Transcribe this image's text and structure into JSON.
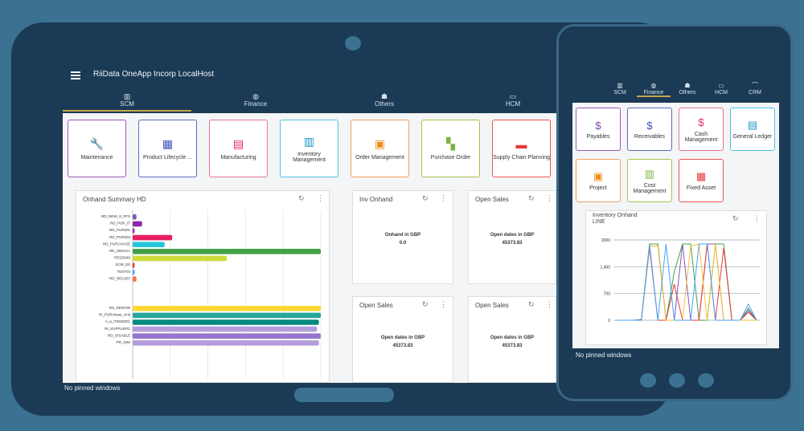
{
  "app": {
    "title": "RiiData OneApp Incorp LocalHost"
  },
  "tabs": [
    {
      "label": "SCM",
      "icon": "building-icon",
      "active": true
    },
    {
      "label": "Finance",
      "icon": "globe-icon",
      "active": false
    },
    {
      "label": "Others",
      "icon": "people-icon",
      "active": false
    },
    {
      "label": "HCM",
      "icon": "id-card-icon",
      "active": false
    }
  ],
  "tiles": [
    {
      "label": "Maintenance",
      "border": "#9b59b6",
      "icon_color": "#7e3fb0",
      "glyph": "🔧",
      "icon": "wrench-icon"
    },
    {
      "label": "Product Lifecycle ...",
      "border": "#5c6bc0",
      "icon_color": "#3f51b5",
      "glyph": "▦",
      "icon": "cube-icon"
    },
    {
      "label": "Manufacturing",
      "border": "#e57399",
      "icon_color": "#e91e63",
      "glyph": "▤",
      "icon": "factory-icon"
    },
    {
      "label": "Inventory Management",
      "border": "#4fc3e6",
      "icon_color": "#2196c8",
      "glyph": "▥",
      "icon": "boxes-icon"
    },
    {
      "label": "Order Management",
      "border": "#f0a060",
      "icon_color": "#ef8c1a",
      "glyph": "▣",
      "icon": "briefcase-icon"
    },
    {
      "label": "Purchase Order",
      "border": "#a5c34a",
      "icon_color": "#7cb342",
      "glyph": "▚",
      "icon": "grid-icon"
    },
    {
      "label": "Supply Chain Planning",
      "border": "#ef5350",
      "icon_color": "#e53935",
      "glyph": "▬",
      "icon": "stack-icon"
    }
  ],
  "panels": {
    "onhand": {
      "title": "Onhand Summary HD"
    },
    "inv_onhand": {
      "title": "Inv Onhand",
      "line1": "Onhand in GBP",
      "line2": "0.0"
    },
    "open_sales_1": {
      "title": "Open Sales",
      "line1": "Open dates in GBP",
      "line2": "45373.83"
    },
    "open_sales_2": {
      "title": "Open Sales",
      "line1": "Open dates in GBP",
      "line2": "45373.83"
    },
    "open_sales_3": {
      "title": "Open Sales",
      "line1": "Open dates in GBP",
      "line2": "45373.83"
    }
  },
  "chart_data": [
    {
      "type": "bar",
      "title": "Onhand Summary HD",
      "orientation": "horizontal",
      "categories": [
        "RD_NEW_S_FFS",
        "RD_PUR_IT",
        "RD_PUR001",
        "RD_PUR004",
        "RD_PURCHASE",
        "RD_SIMASA",
        "REG5048",
        "SCM_SS",
        "TEST03",
        "RD_REC007",
        "RD_RENT05",
        "RI_PURchase_Unit",
        "ri_a_ITEM2001",
        "RI_SUPPLIER1",
        "RD_DISABLE",
        "PR_SWI"
      ],
      "values": [
        2,
        5,
        1,
        21,
        17,
        100,
        50,
        1,
        1,
        2,
        100,
        100,
        99,
        98,
        100,
        99
      ],
      "colors": [
        "#7e57c2",
        "#8e24aa",
        "#9c27b0",
        "#e91e63",
        "#26c6da",
        "#43a047",
        "#cddc39",
        "#e53935",
        "#42a5f5",
        "#ff7043",
        "#fdd835",
        "#26a69a",
        "#00897b",
        "#b39ddb",
        "#9575cd",
        "#b39ddb"
      ],
      "xlim": [
        0,
        100
      ],
      "grid": true
    },
    {
      "type": "line",
      "title": "Inventory Onhand LINE",
      "yticks": [
        "2000",
        "1,400",
        "700",
        "0"
      ],
      "ylim": [
        0,
        2000
      ],
      "series": [
        {
          "color": "#7e57c2",
          "values": [
            0,
            0,
            0,
            20,
            1900,
            1900,
            0,
            0,
            1900,
            0,
            0,
            1900,
            1900,
            0,
            0,
            0,
            250,
            0
          ]
        },
        {
          "color": "#43a047",
          "values": [
            0,
            0,
            0,
            0,
            1900,
            1900,
            0,
            1200,
            1900,
            1900,
            0,
            0,
            1900,
            1900,
            0,
            0,
            300,
            0
          ]
        },
        {
          "color": "#e53935",
          "values": [
            0,
            0,
            0,
            0,
            1800,
            0,
            0,
            900,
            0,
            0,
            0,
            1900,
            0,
            1800,
            0,
            0,
            200,
            0
          ]
        },
        {
          "color": "#fbc02d",
          "values": [
            0,
            0,
            0,
            0,
            1850,
            1850,
            0,
            0,
            0,
            1850,
            1900,
            0,
            1900,
            0,
            0,
            0,
            0,
            0
          ]
        },
        {
          "color": "#42a5f5",
          "values": [
            0,
            0,
            0,
            0,
            1900,
            0,
            1900,
            0,
            0,
            0,
            1900,
            1900,
            0,
            0,
            0,
            0,
            400,
            0
          ]
        }
      ]
    }
  ],
  "footer": {
    "text": "No pinned windows"
  },
  "phone": {
    "tabs": [
      {
        "label": "SCM",
        "icon": "building-icon",
        "active": false
      },
      {
        "label": "Finance",
        "icon": "globe-icon",
        "active": true
      },
      {
        "label": "Others",
        "icon": "people-icon",
        "active": false
      },
      {
        "label": "HCM",
        "icon": "id-card-icon",
        "active": false
      },
      {
        "label": "CRM",
        "icon": "handshake-icon",
        "active": false
      }
    ],
    "tiles": [
      {
        "label": "Payables",
        "border": "#9b59b6",
        "icon_color": "#7e3fb0",
        "glyph": "$",
        "icon": "dollar-icon"
      },
      {
        "label": "Receivables",
        "border": "#5c6bc0",
        "icon_color": "#3f51b5",
        "glyph": "$",
        "icon": "dollar-icon"
      },
      {
        "label": "Cash Management",
        "border": "#e57399",
        "icon_color": "#e91e63",
        "glyph": "$",
        "icon": "coin-icon"
      },
      {
        "label": "General Ledger",
        "border": "#4fc3e6",
        "icon_color": "#2196c8",
        "glyph": "▤",
        "icon": "ledger-icon"
      },
      {
        "label": "Project",
        "border": "#f0a060",
        "icon_color": "#ef8c1a",
        "glyph": "▣",
        "icon": "project-icon"
      },
      {
        "label": "Cost Management",
        "border": "#a5c34a",
        "icon_color": "#7cb342",
        "glyph": "▥",
        "icon": "cost-icon"
      },
      {
        "label": "Fixed Asset",
        "border": "#ef5350",
        "icon_color": "#e53935",
        "glyph": "▦",
        "icon": "asset-icon"
      }
    ],
    "panel_title": "Inventory Onhand LINE"
  }
}
